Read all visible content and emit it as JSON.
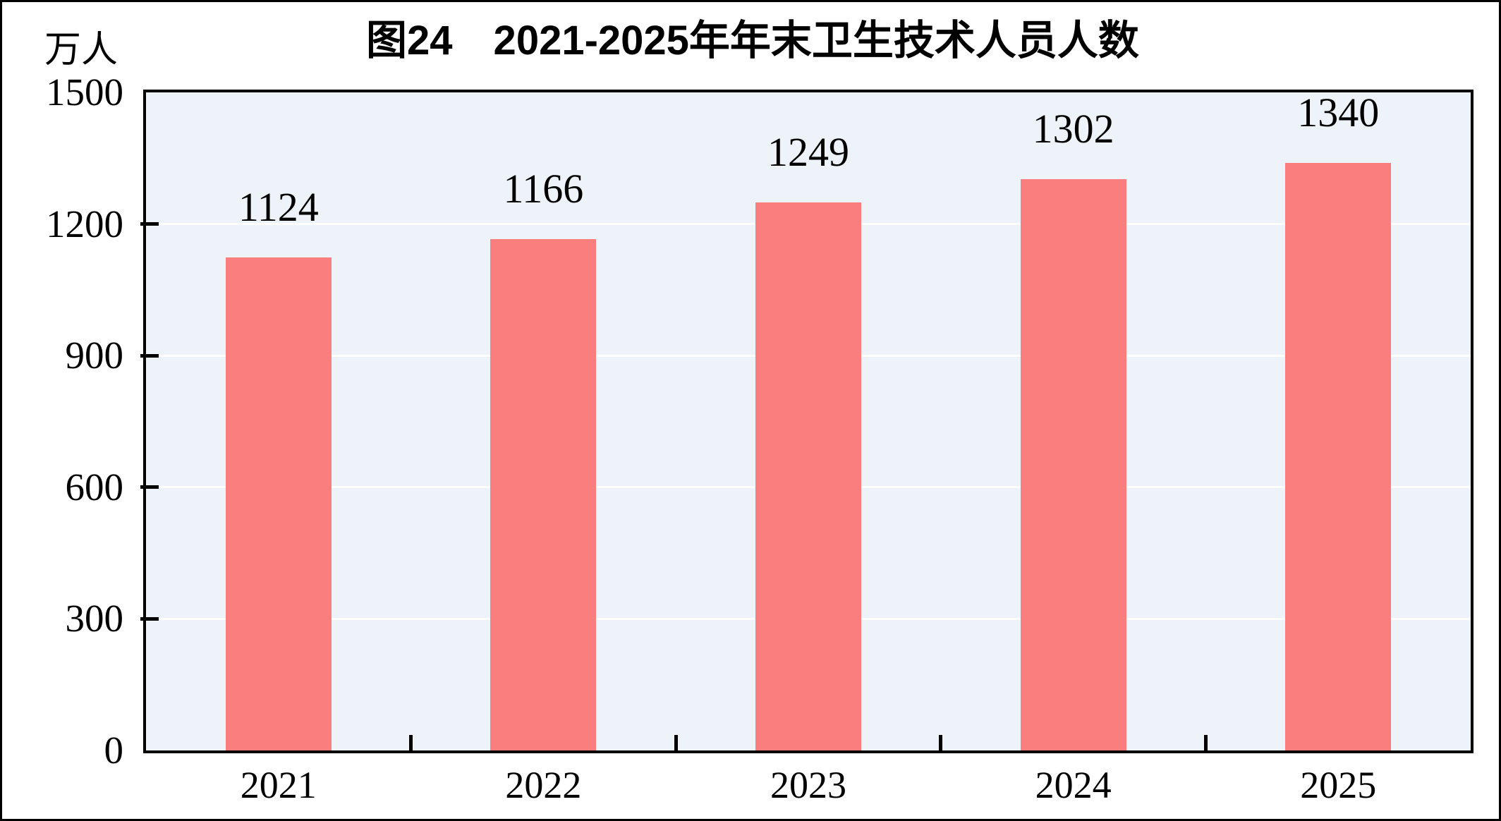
{
  "chart_data": {
    "type": "bar",
    "title": "图24　2021-2025年年末卫生技术人员人数",
    "unit": "万人",
    "categories": [
      "2021",
      "2022",
      "2023",
      "2024",
      "2025"
    ],
    "values": [
      1124,
      1166,
      1249,
      1302,
      1340
    ],
    "data_labels": [
      "1124",
      "1166",
      "1249",
      "1302",
      "1340"
    ],
    "xlabel": "",
    "ylabel": "万人",
    "ylim": [
      0,
      1500
    ],
    "yticks": [
      0,
      300,
      600,
      900,
      1200,
      1500
    ],
    "grid": "horizontal",
    "legend": "none",
    "colors": {
      "bar_fill": "#FB7E7E",
      "plot_background": "#EDF3F8",
      "gridline": "#FFFFFF",
      "axis": "#000000",
      "text": "#000000"
    }
  }
}
